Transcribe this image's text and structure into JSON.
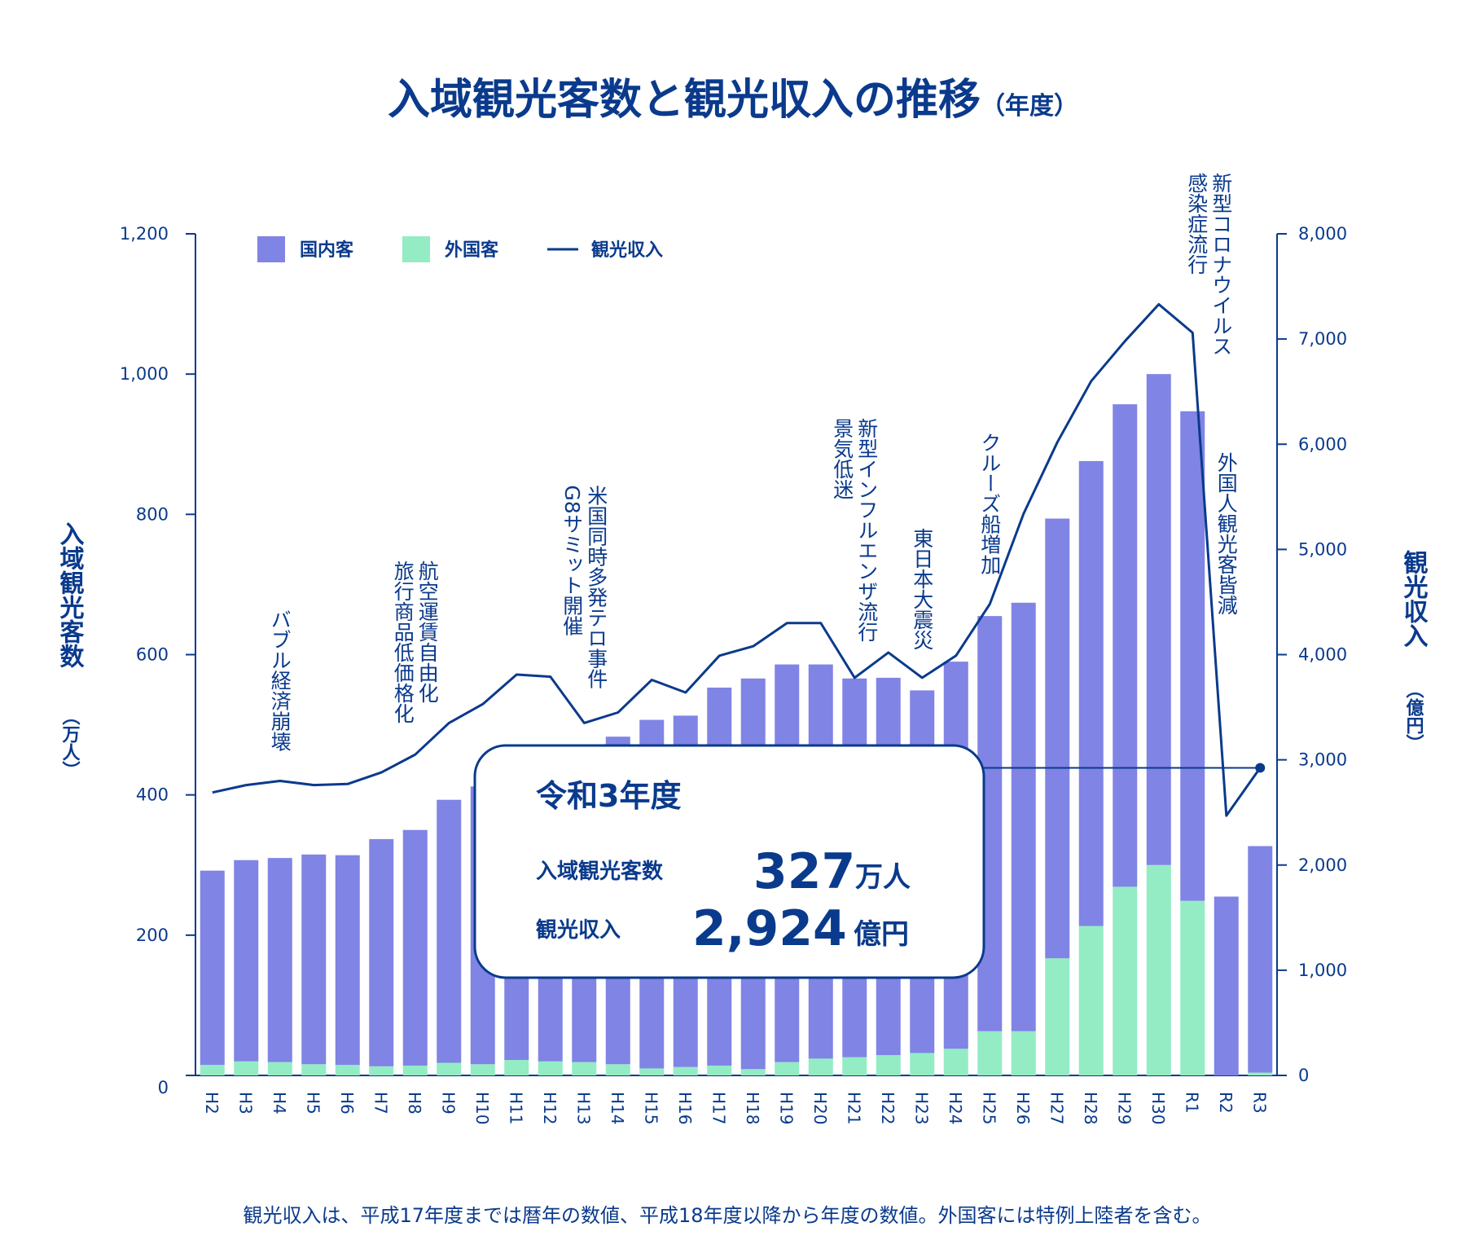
{
  "colors": {
    "domestic": "#8084e4",
    "foreign": "#93ecc4",
    "line": "#0a3a8c",
    "text": "#0a3a8c"
  },
  "title": {
    "main": "入域観光客数と観光収入の推移",
    "suffix": "（年度）"
  },
  "legend": {
    "domestic": "国内客",
    "foreign": "外国客",
    "income": "観光収入"
  },
  "axes": {
    "left_title": "入域観光客数",
    "left_unit": "（万人）",
    "right_title": "観光収入",
    "right_unit": "（億円）"
  },
  "highlight": {
    "title": "令和3年度",
    "visitors_label": "入域観光客数",
    "visitors_value": "327",
    "visitors_unit": "万人",
    "income_label": "観光収入",
    "income_value": "2,924",
    "income_unit": "億円"
  },
  "annotations": [
    {
      "year": "H4",
      "lines": [
        "バブル経済崩壊"
      ]
    },
    {
      "year": "H8",
      "lines": [
        "航空運賃自由化",
        "旅行商品低価格化"
      ]
    },
    {
      "year": "H13",
      "lines": [
        "米国同時多発テロ事件",
        "G8サミット開催"
      ]
    },
    {
      "year": "H21",
      "lines": [
        "新型インフルエンザ流行",
        "景気低迷"
      ]
    },
    {
      "year": "H23",
      "lines": [
        "東日本大震災"
      ]
    },
    {
      "year": "H25",
      "lines": [
        "クルーズ船増加"
      ]
    },
    {
      "year": "R1",
      "lines": [
        "新型コロナウイルス",
        "感染症流行"
      ]
    },
    {
      "year": "R2",
      "lines": [
        "外国人観光客皆減"
      ]
    }
  ],
  "footnote": "観光収入は、平成17年度までは暦年の数値、平成18年度以降から年度の数値。外国客には特例上陸者を含む。",
  "chart_data": {
    "type": "bar",
    "categories": [
      "H2",
      "H3",
      "H4",
      "H5",
      "H6",
      "H7",
      "H8",
      "H9",
      "H10",
      "H11",
      "H12",
      "H13",
      "H14",
      "H15",
      "H16",
      "H17",
      "H18",
      "H19",
      "H20",
      "H21",
      "H22",
      "H23",
      "H24",
      "H25",
      "H26",
      "H27",
      "H28",
      "H29",
      "H30",
      "R1",
      "R2",
      "R3"
    ],
    "series": [
      {
        "name": "国内客",
        "type": "bar",
        "stack": "visitors",
        "axis": "left",
        "values": [
          277,
          287,
          291,
          299,
          299,
          324,
          336,
          375,
          396,
          430,
          429,
          428,
          467,
          497,
          501,
          539,
          557,
          567,
          562,
          540,
          538,
          517,
          552,
          592,
          611,
          627,
          663,
          688,
          700,
          698,
          255,
          323
        ]
      },
      {
        "name": "外国客",
        "type": "bar",
        "stack": "visitors",
        "axis": "left",
        "values": [
          15,
          20,
          19,
          16,
          15,
          13,
          14,
          18,
          16,
          22,
          20,
          19,
          16,
          10,
          12,
          14,
          9,
          19,
          24,
          26,
          29,
          32,
          38,
          63,
          63,
          167,
          213,
          269,
          300,
          249,
          0,
          4
        ]
      },
      {
        "name": "観光収入",
        "type": "line",
        "axis": "right",
        "values": [
          2690,
          2760,
          2800,
          2760,
          2770,
          2880,
          3050,
          3350,
          3530,
          3810,
          3790,
          3350,
          3450,
          3760,
          3640,
          3990,
          4080,
          4300,
          4300,
          3780,
          4020,
          3780,
          3990,
          4480,
          5340,
          6020,
          6600,
          6980,
          7330,
          7060,
          2470,
          2924
        ]
      }
    ],
    "ylim_left": [
      0,
      1200
    ],
    "yticks_left": [
      "0",
      "200",
      "400",
      "600",
      "800",
      "1,000",
      "1,200"
    ],
    "ylim_right": [
      0,
      8000
    ],
    "yticks_right": [
      "0",
      "1,000",
      "2,000",
      "3,000",
      "4,000",
      "5,000",
      "6,000",
      "7,000",
      "8,000"
    ],
    "legend_position": "top-left"
  }
}
